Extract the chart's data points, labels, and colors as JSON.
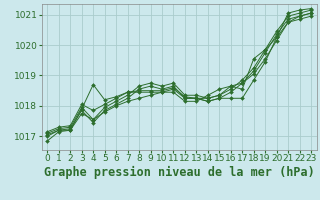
{
  "title": "Graphe pression niveau de la mer (hPa)",
  "background_color": "#cce8ec",
  "grid_color": "#aacccc",
  "line_color": "#2d6e2d",
  "marker_color": "#2d6e2d",
  "xlim": [
    -0.5,
    23.5
  ],
  "ylim": [
    1016.55,
    1021.35
  ],
  "yticks": [
    1017,
    1018,
    1019,
    1020,
    1021
  ],
  "xticks": [
    0,
    1,
    2,
    3,
    4,
    5,
    6,
    7,
    8,
    9,
    10,
    11,
    12,
    13,
    14,
    15,
    16,
    17,
    18,
    19,
    20,
    21,
    22,
    23
  ],
  "series": [
    [
      1016.85,
      1017.15,
      1017.2,
      1017.75,
      1017.55,
      1017.8,
      1018.0,
      1018.15,
      1018.25,
      1018.35,
      1018.45,
      1018.55,
      1018.25,
      1018.25,
      1018.15,
      1018.25,
      1018.25,
      1018.25,
      1018.85,
      1019.45,
      1020.25,
      1020.75,
      1020.85,
      1020.95
    ],
    [
      1017.0,
      1017.2,
      1017.25,
      1017.85,
      1017.45,
      1017.85,
      1018.05,
      1018.25,
      1018.55,
      1018.65,
      1018.55,
      1018.65,
      1018.25,
      1018.25,
      1018.15,
      1018.25,
      1018.45,
      1018.75,
      1019.15,
      1019.75,
      1020.35,
      1020.85,
      1020.95,
      1021.05
    ],
    [
      1017.1,
      1017.25,
      1017.3,
      1017.95,
      1017.55,
      1017.95,
      1018.15,
      1018.35,
      1018.65,
      1018.75,
      1018.65,
      1018.75,
      1018.35,
      1018.35,
      1018.25,
      1018.35,
      1018.55,
      1018.85,
      1019.25,
      1019.85,
      1020.45,
      1020.95,
      1021.05,
      1021.15
    ],
    [
      1017.15,
      1017.3,
      1017.35,
      1018.05,
      1017.85,
      1018.05,
      1018.25,
      1018.45,
      1018.45,
      1018.45,
      1018.45,
      1018.45,
      1018.15,
      1018.15,
      1018.35,
      1018.55,
      1018.65,
      1018.75,
      1019.05,
      1019.55,
      1020.15,
      1020.75,
      1020.95,
      1021.05
    ],
    [
      1017.05,
      1017.2,
      1017.2,
      1017.9,
      1018.7,
      1018.2,
      1018.3,
      1018.45,
      1018.5,
      1018.5,
      1018.5,
      1018.6,
      1018.3,
      1018.25,
      1018.25,
      1018.35,
      1018.65,
      1018.55,
      1019.55,
      1019.85,
      1020.25,
      1021.05,
      1021.15,
      1021.2
    ]
  ],
  "tick_fontsize": 6.5,
  "label_fontsize": 8.5
}
